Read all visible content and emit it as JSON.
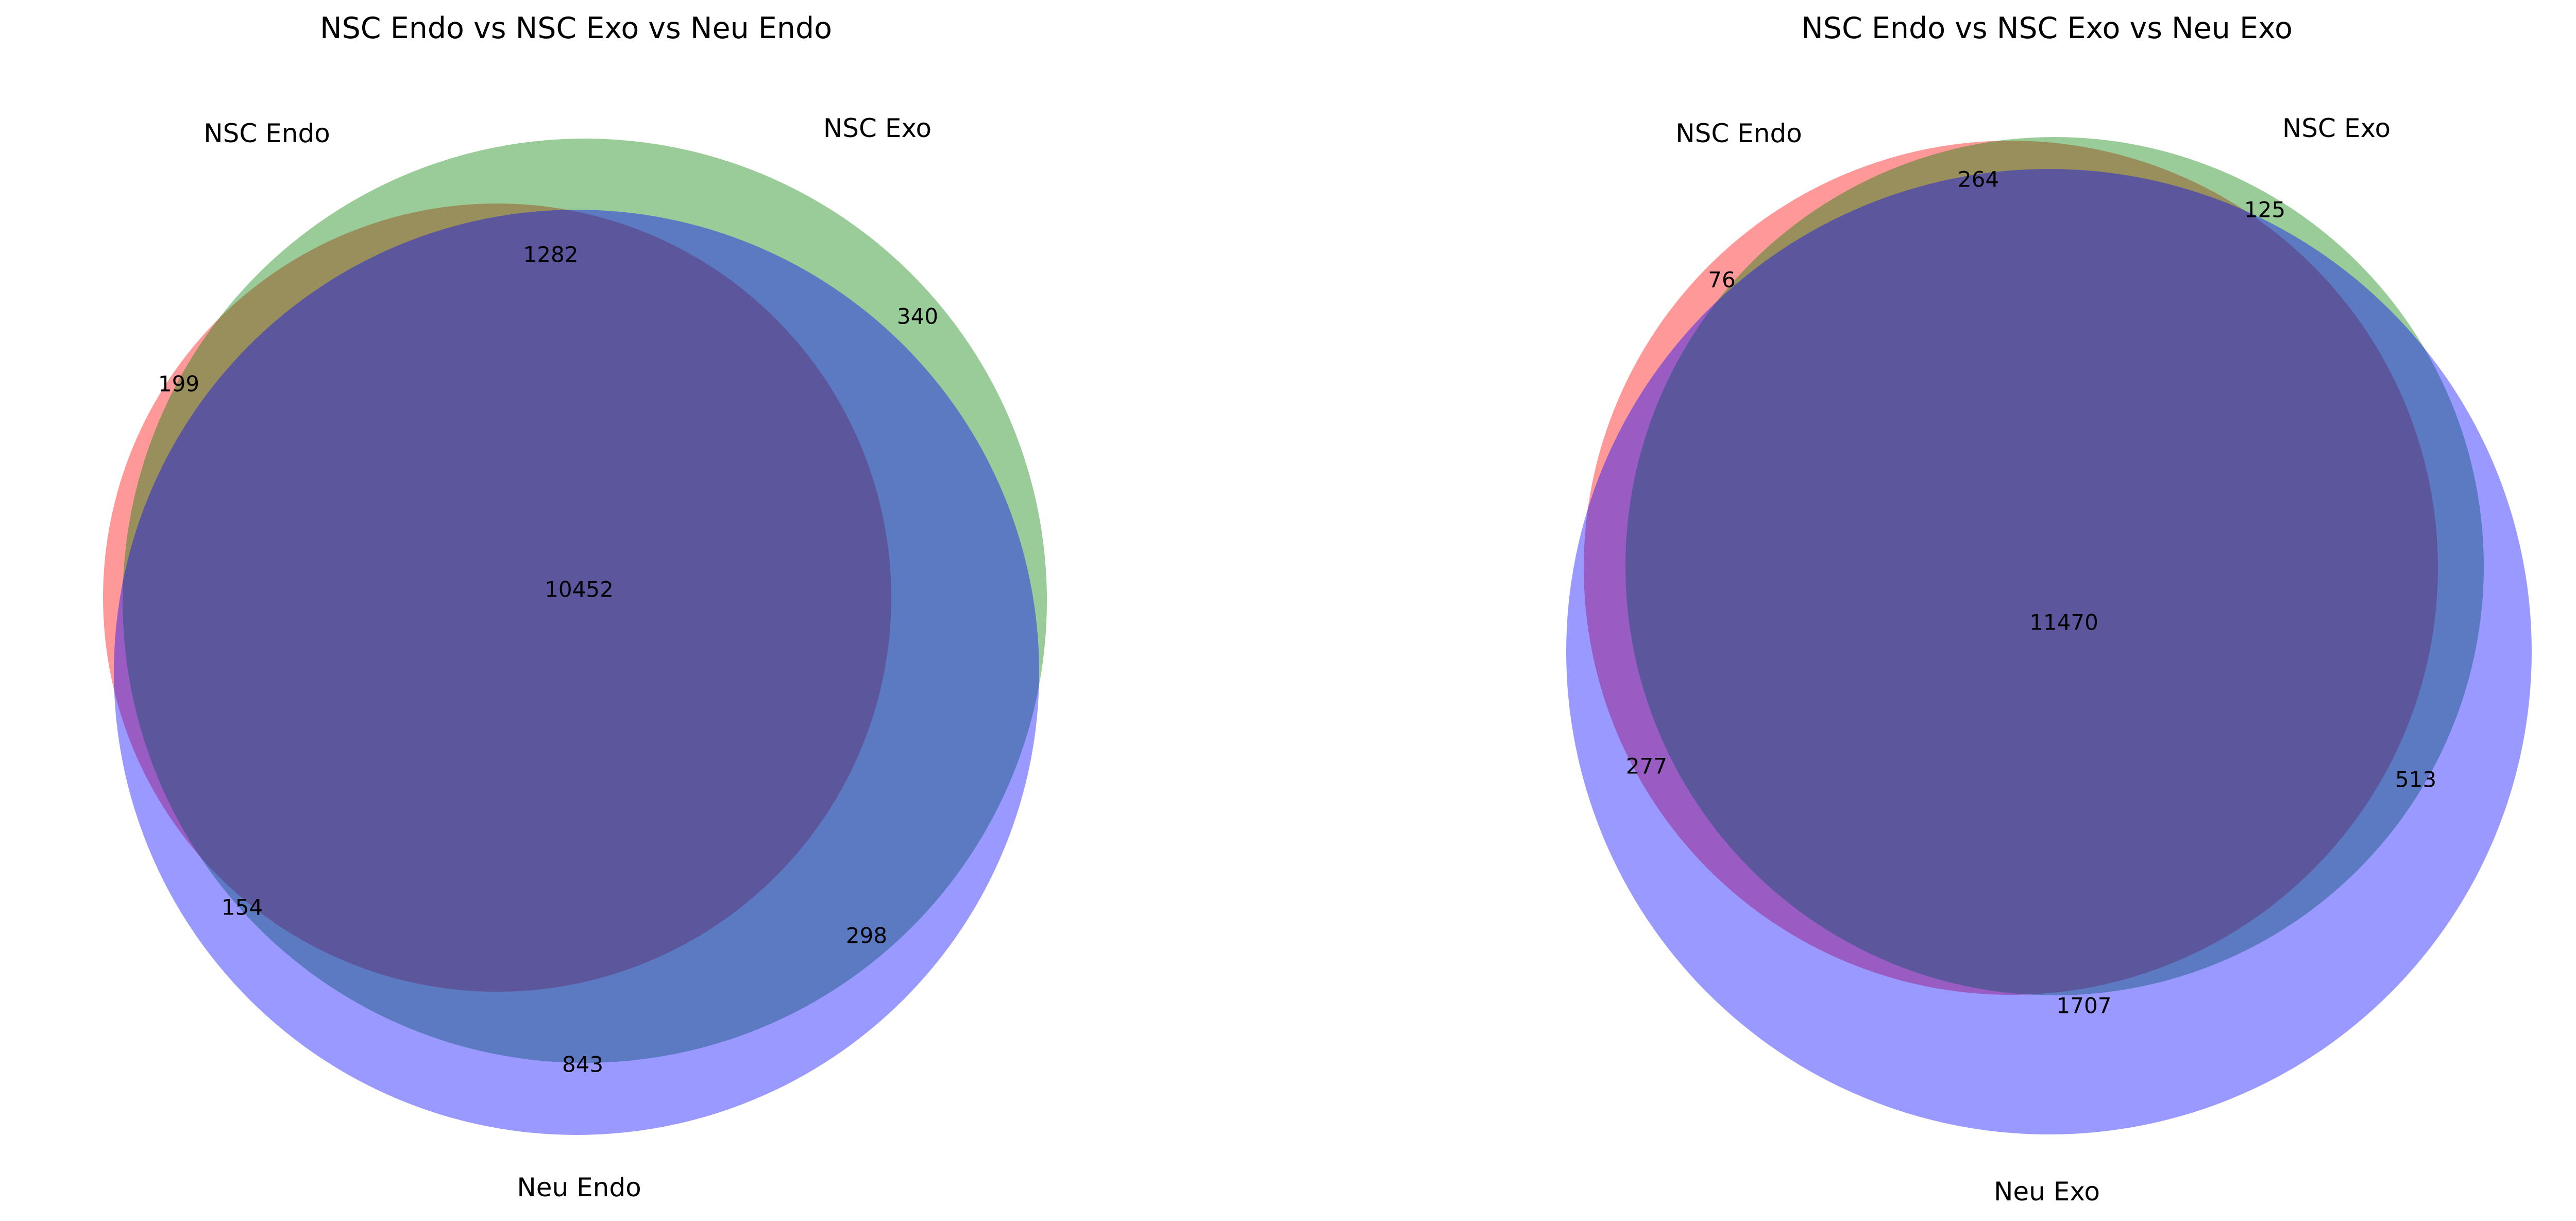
{
  "colors": {
    "set_a": "#ff0000",
    "set_b": "#008000",
    "set_c": "#0000ff",
    "alpha": 0.4
  },
  "charts": [
    {
      "title": "NSC Endo vs NSC Exo vs Neu Endo",
      "set_labels": [
        "NSC Endo",
        "NSC Exo",
        "Neu Endo"
      ],
      "regions": {
        "A_only": "199",
        "B_only": "340",
        "C_only": "843",
        "AB_only": "1282",
        "AC_only": "154",
        "BC_only": "298",
        "ABC": "10452"
      }
    },
    {
      "title": "NSC Endo vs NSC Exo vs Neu Exo",
      "set_labels": [
        "NSC Endo",
        "NSC Exo",
        "Neu Exo"
      ],
      "regions": {
        "A_only": "76",
        "B_only": "125",
        "C_only": "1707",
        "AB_only": "264",
        "AC_only": "277",
        "BC_only": "513",
        "ABC": "11470"
      }
    }
  ]
}
